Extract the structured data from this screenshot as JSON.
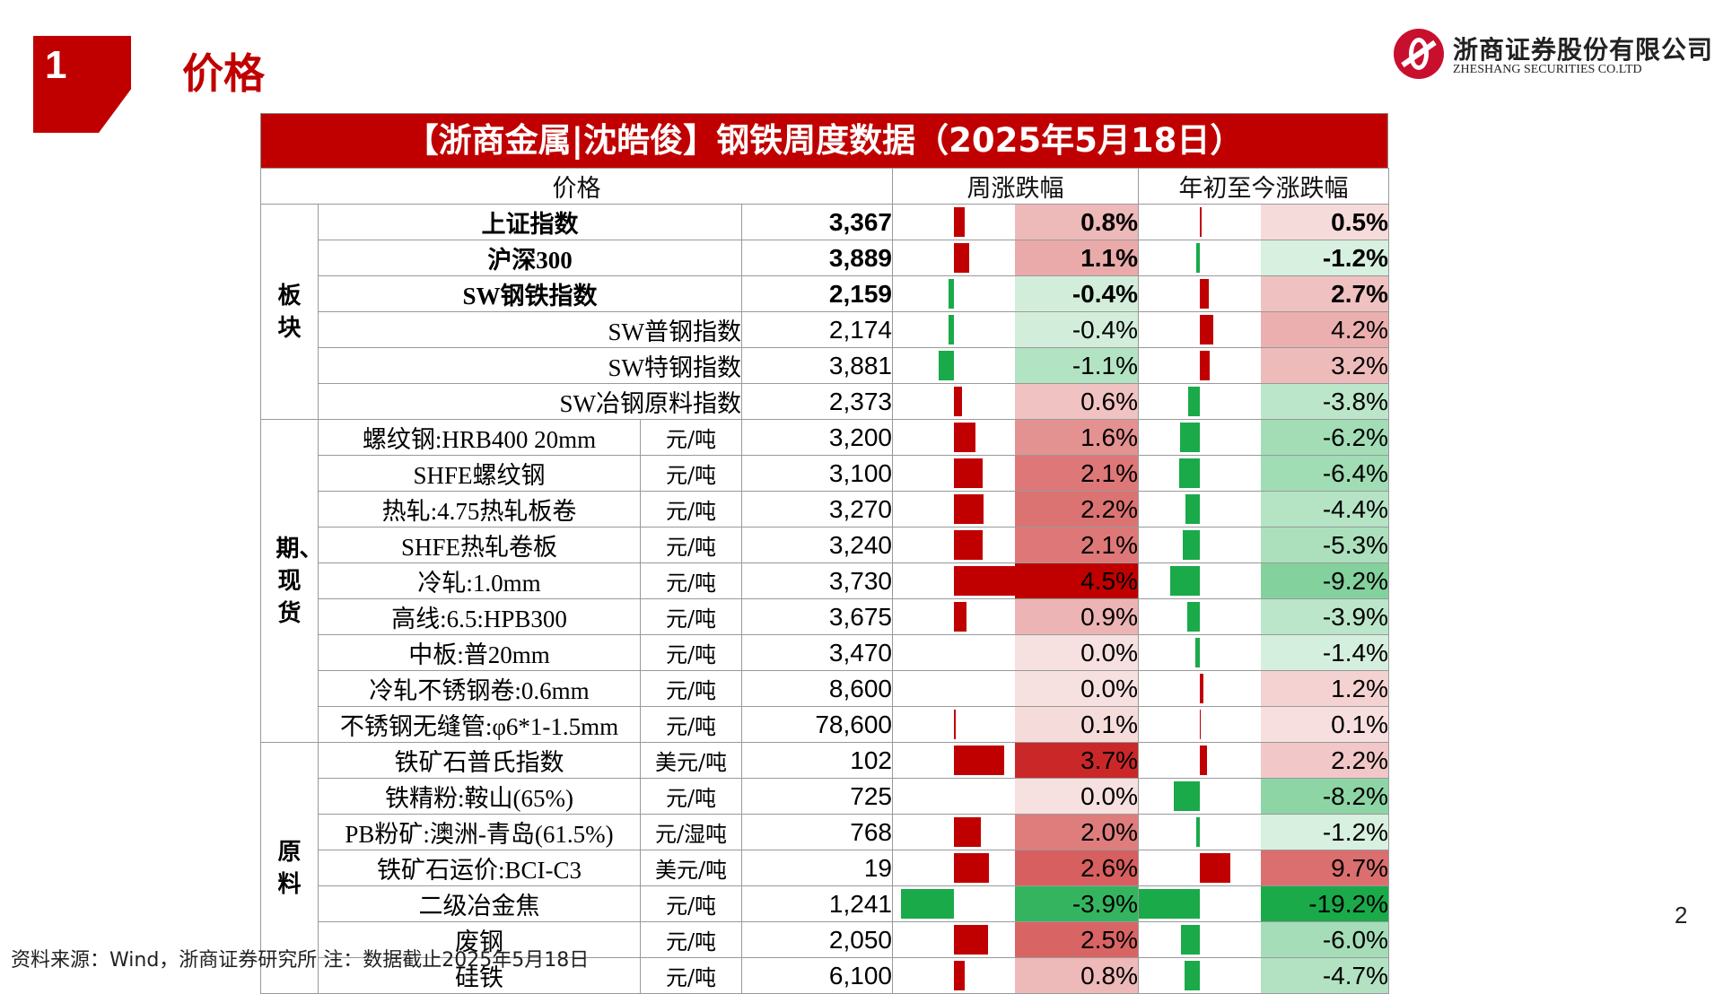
{
  "section": {
    "number": "1",
    "title": "价格"
  },
  "logo": {
    "cn": "浙商证券股份有限公司",
    "en": "ZHESHANG SECURITIES CO.LTD"
  },
  "table": {
    "title": "【浙商金属|沈皓俊】钢铁周度数据（2025年5月18日）",
    "headers": {
      "price": "价格",
      "weekly": "周涨跌幅",
      "ytd": "年初至今涨跌幅"
    },
    "groups": [
      {
        "label": "板块",
        "rows": [
          {
            "name": "上证指数",
            "unit": "",
            "value": "3,367",
            "weekly": "0.8%",
            "weekly_num": 0.8,
            "ytd": "0.5%",
            "ytd_num": 0.5,
            "bold": true,
            "align": "c"
          },
          {
            "name": "沪深300",
            "unit": "",
            "value": "3,889",
            "weekly": "1.1%",
            "weekly_num": 1.1,
            "ytd": "-1.2%",
            "ytd_num": -1.2,
            "bold": true,
            "align": "c"
          },
          {
            "name": "SW钢铁指数",
            "unit": "",
            "value": "2,159",
            "weekly": "-0.4%",
            "weekly_num": -0.4,
            "ytd": "2.7%",
            "ytd_num": 2.7,
            "bold": true,
            "align": "c"
          },
          {
            "name": "SW普钢指数",
            "unit": "",
            "value": "2,174",
            "weekly": "-0.4%",
            "weekly_num": -0.4,
            "ytd": "4.2%",
            "ytd_num": 4.2,
            "bold": false,
            "align": "r"
          },
          {
            "name": "SW特钢指数",
            "unit": "",
            "value": "3,881",
            "weekly": "-1.1%",
            "weekly_num": -1.1,
            "ytd": "3.2%",
            "ytd_num": 3.2,
            "bold": false,
            "align": "r"
          },
          {
            "name": "SW冶钢原料指数",
            "unit": "",
            "value": "2,373",
            "weekly": "0.6%",
            "weekly_num": 0.6,
            "ytd": "-3.8%",
            "ytd_num": -3.8,
            "bold": false,
            "align": "r"
          }
        ]
      },
      {
        "label": "期、现货",
        "rows": [
          {
            "name": "螺纹钢:HRB400 20mm",
            "unit": "元/吨",
            "value": "3,200",
            "weekly": "1.6%",
            "weekly_num": 1.6,
            "ytd": "-6.2%",
            "ytd_num": -6.2
          },
          {
            "name": "SHFE螺纹钢",
            "unit": "元/吨",
            "value": "3,100",
            "weekly": "2.1%",
            "weekly_num": 2.1,
            "ytd": "-6.4%",
            "ytd_num": -6.4
          },
          {
            "name": "热轧:4.75热轧板卷",
            "unit": "元/吨",
            "value": "3,270",
            "weekly": "2.2%",
            "weekly_num": 2.2,
            "ytd": "-4.4%",
            "ytd_num": -4.4
          },
          {
            "name": "SHFE热轧卷板",
            "unit": "元/吨",
            "value": "3,240",
            "weekly": "2.1%",
            "weekly_num": 2.1,
            "ytd": "-5.3%",
            "ytd_num": -5.3
          },
          {
            "name": "冷轧:1.0mm",
            "unit": "元/吨",
            "value": "3,730",
            "weekly": "4.5%",
            "weekly_num": 4.5,
            "ytd": "-9.2%",
            "ytd_num": -9.2
          },
          {
            "name": "高线:6.5:HPB300",
            "unit": "元/吨",
            "value": "3,675",
            "weekly": "0.9%",
            "weekly_num": 0.9,
            "ytd": "-3.9%",
            "ytd_num": -3.9
          },
          {
            "name": "中板:普20mm",
            "unit": "元/吨",
            "value": "3,470",
            "weekly": "0.0%",
            "weekly_num": 0.0,
            "ytd": "-1.4%",
            "ytd_num": -1.4
          },
          {
            "name": "冷轧不锈钢卷:0.6mm",
            "unit": "元/吨",
            "value": "8,600",
            "weekly": "0.0%",
            "weekly_num": 0.0,
            "ytd": "1.2%",
            "ytd_num": 1.2
          },
          {
            "name": "不锈钢无缝管:φ6*1-1.5mm",
            "unit": "元/吨",
            "value": "78,600",
            "weekly": "0.1%",
            "weekly_num": 0.1,
            "ytd": "0.1%",
            "ytd_num": 0.1
          }
        ]
      },
      {
        "label": "原料",
        "rows": [
          {
            "name": "铁矿石普氏指数",
            "unit": "美元/吨",
            "value": "102",
            "weekly": "3.7%",
            "weekly_num": 3.7,
            "ytd": "2.2%",
            "ytd_num": 2.2
          },
          {
            "name": "铁精粉:鞍山(65%)",
            "unit": "元/吨",
            "value": "725",
            "weekly": "0.0%",
            "weekly_num": 0.0,
            "ytd": "-8.2%",
            "ytd_num": -8.2
          },
          {
            "name": "PB粉矿:澳洲-青岛(61.5%)",
            "unit": "元/湿吨",
            "value": "768",
            "weekly": "2.0%",
            "weekly_num": 2.0,
            "ytd": "-1.2%",
            "ytd_num": -1.2
          },
          {
            "name": "铁矿石运价:BCI-C3",
            "unit": "美元/吨",
            "value": "19",
            "weekly": "2.6%",
            "weekly_num": 2.6,
            "ytd": "9.7%",
            "ytd_num": 9.7
          },
          {
            "name": "二级冶金焦",
            "unit": "元/吨",
            "value": "1,241",
            "weekly": "-3.9%",
            "weekly_num": -3.9,
            "ytd": "-19.2%",
            "ytd_num": -19.2
          },
          {
            "name": "废钢",
            "unit": "元/吨",
            "value": "2,050",
            "weekly": "2.5%",
            "weekly_num": 2.5,
            "ytd": "-6.0%",
            "ytd_num": -6.0
          },
          {
            "name": "硅铁",
            "unit": "元/吨",
            "value": "6,100",
            "weekly": "0.8%",
            "weekly_num": 0.8,
            "ytd": "-4.7%",
            "ytd_num": -4.7
          }
        ]
      }
    ]
  },
  "colors": {
    "positive_bar": "#c00000",
    "negative_bar": "#1aaa4a",
    "brand": "#c00000"
  },
  "page_number": "2",
  "footnote": "资料来源：Wind，浙商证券研究所    注：数据截止2025年5月18日"
}
